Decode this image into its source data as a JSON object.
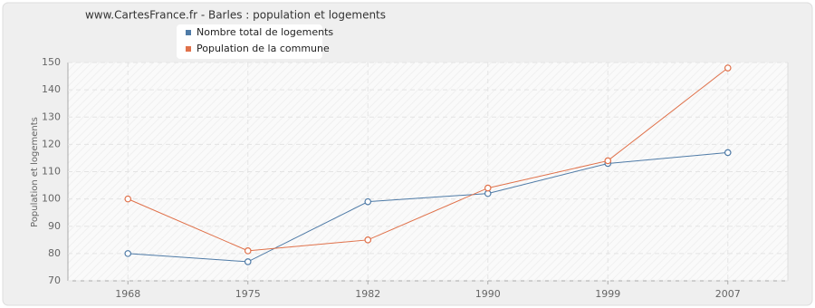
{
  "chart_data": {
    "type": "line",
    "title": "www.CartesFrance.fr - Barles : population et logements",
    "y_label": "Population et logements",
    "categories": [
      "1968",
      "1975",
      "1982",
      "1990",
      "1999",
      "2007"
    ],
    "series": [
      {
        "name": "Nombre total de logements",
        "color": "#4f7ba7",
        "values": [
          80,
          77,
          99,
          102,
          113,
          117
        ]
      },
      {
        "name": "Population de la commune",
        "color": "#e0714a",
        "values": [
          100,
          81,
          85,
          104,
          114,
          148
        ]
      }
    ],
    "ylim": [
      70,
      150
    ],
    "yticks": [
      70,
      80,
      90,
      100,
      110,
      120,
      130,
      140,
      150
    ],
    "grid": true
  }
}
